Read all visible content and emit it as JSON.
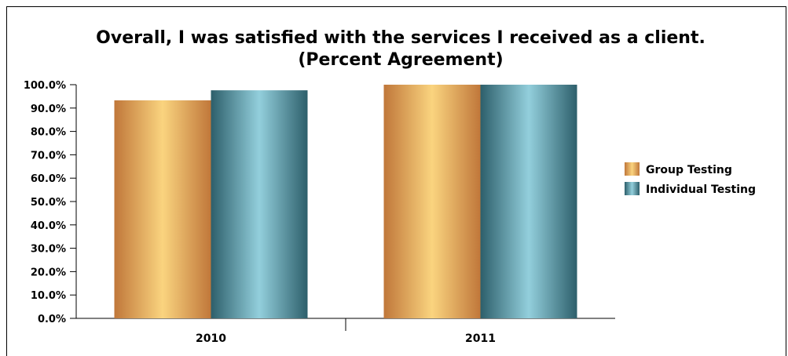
{
  "chart_data": {
    "type": "bar",
    "title": "Overall, I was satisfied with the services I received as a client.",
    "subtitle": "(Percent Agreement)",
    "categories": [
      "2010",
      "2011"
    ],
    "series": [
      {
        "name": "Group Testing",
        "values": [
          93.3,
          100.0
        ]
      },
      {
        "name": "Individual Testing",
        "values": [
          97.6,
          100.0
        ]
      }
    ],
    "ylim": [
      0,
      100
    ],
    "yticks": [
      0,
      10,
      20,
      30,
      40,
      50,
      60,
      70,
      80,
      90,
      100
    ],
    "ytick_format": "percent_1dp",
    "grid": false,
    "legend_position": "right",
    "colors": {
      "group": [
        "#c0773a",
        "#fad47f"
      ],
      "individual": [
        "#2d5f6b",
        "#93cfdc"
      ]
    }
  }
}
